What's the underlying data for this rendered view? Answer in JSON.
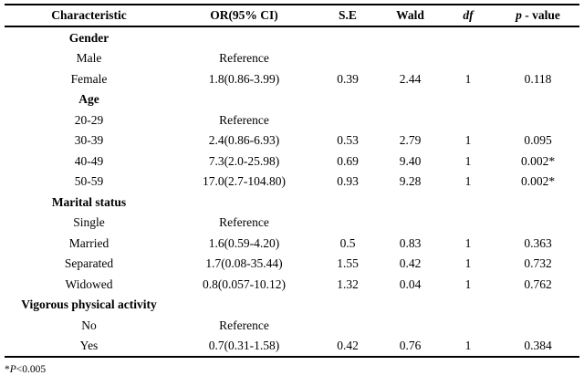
{
  "table": {
    "header": {
      "characteristic": "Characteristic",
      "or_ci": "OR(95% CI)",
      "se": "S.E",
      "wald": "Wald",
      "df": "df",
      "p_label_italic": "p",
      "p_label_rest": " - value"
    },
    "rows": [
      {
        "type": "category",
        "label": "Gender",
        "or": "",
        "se": "",
        "wald": "",
        "df": "",
        "p": ""
      },
      {
        "type": "item",
        "label": "Male",
        "or": "Reference",
        "se": "",
        "wald": "",
        "df": "",
        "p": ""
      },
      {
        "type": "item",
        "label": "Female",
        "or": "1.8(0.86-3.99)",
        "se": "0.39",
        "wald": "2.44",
        "df": "1",
        "p": "0.118"
      },
      {
        "type": "category",
        "label": "Age",
        "or": "",
        "se": "",
        "wald": "",
        "df": "",
        "p": ""
      },
      {
        "type": "item",
        "label": "20-29",
        "or": "Reference",
        "se": "",
        "wald": "",
        "df": "",
        "p": ""
      },
      {
        "type": "item",
        "label": "30-39",
        "or": "2.4(0.86-6.93)",
        "se": "0.53",
        "wald": "2.79",
        "df": "1",
        "p": "0.095"
      },
      {
        "type": "item",
        "label": "40-49",
        "or": "7.3(2.0-25.98)",
        "se": "0.69",
        "wald": "9.40",
        "df": "1",
        "p": "0.002*"
      },
      {
        "type": "item",
        "label": "50-59",
        "or": "17.0(2.7-104.80)",
        "se": "0.93",
        "wald": "9.28",
        "df": "1",
        "p": "0.002*"
      },
      {
        "type": "category",
        "label": "Marital status",
        "or": "",
        "se": "",
        "wald": "",
        "df": "",
        "p": ""
      },
      {
        "type": "item",
        "label": "Single",
        "or": "Reference",
        "se": "",
        "wald": "",
        "df": "",
        "p": ""
      },
      {
        "type": "item",
        "label": "Married",
        "or": "1.6(0.59-4.20)",
        "se": "0.5",
        "wald": "0.83",
        "df": "1",
        "p": "0.363"
      },
      {
        "type": "item",
        "label": "Separated",
        "or": "1.7(0.08-35.44)",
        "se": "1.55",
        "wald": "0.42",
        "df": "1",
        "p": "0.732"
      },
      {
        "type": "item",
        "label": "Widowed",
        "or": "0.8(0.057-10.12)",
        "se": "1.32",
        "wald": "0.04",
        "df": "1",
        "p": "0.762"
      },
      {
        "type": "category",
        "label": "Vigorous physical activity",
        "or": "",
        "se": "",
        "wald": "",
        "df": "",
        "p": ""
      },
      {
        "type": "item",
        "label": "No",
        "or": "Reference",
        "se": "",
        "wald": "",
        "df": "",
        "p": ""
      },
      {
        "type": "item",
        "label": "Yes",
        "or": "0.7(0.31-1.58)",
        "se": "0.42",
        "wald": "0.76",
        "df": "1",
        "p": "0.384"
      }
    ]
  },
  "footnote": {
    "star": "*",
    "p_italic": "P",
    "rest": "<0.005"
  },
  "colors": {
    "background": "#ffffff",
    "text": "#000000",
    "rule": "#000000"
  }
}
